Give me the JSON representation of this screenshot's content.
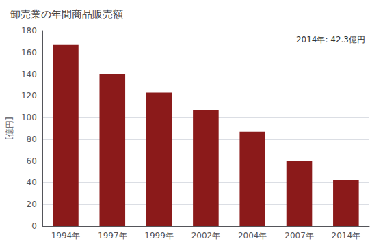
{
  "chart_data": {
    "type": "bar",
    "title": "卸売業の年間商品販売額",
    "ylabel": "[億円]",
    "annotation": "2014年: 42.3億円",
    "categories": [
      "1994年",
      "1997年",
      "1999年",
      "2002年",
      "2004年",
      "2007年",
      "2014年"
    ],
    "values": [
      167.0,
      140.0,
      123.0,
      107.0,
      87.0,
      60.0,
      42.3
    ],
    "color": "#8B1A1A",
    "ylim": [
      0,
      180
    ],
    "yticks": [
      0,
      20,
      40,
      60,
      80,
      100,
      120,
      140,
      160,
      180
    ],
    "grid": true
  }
}
